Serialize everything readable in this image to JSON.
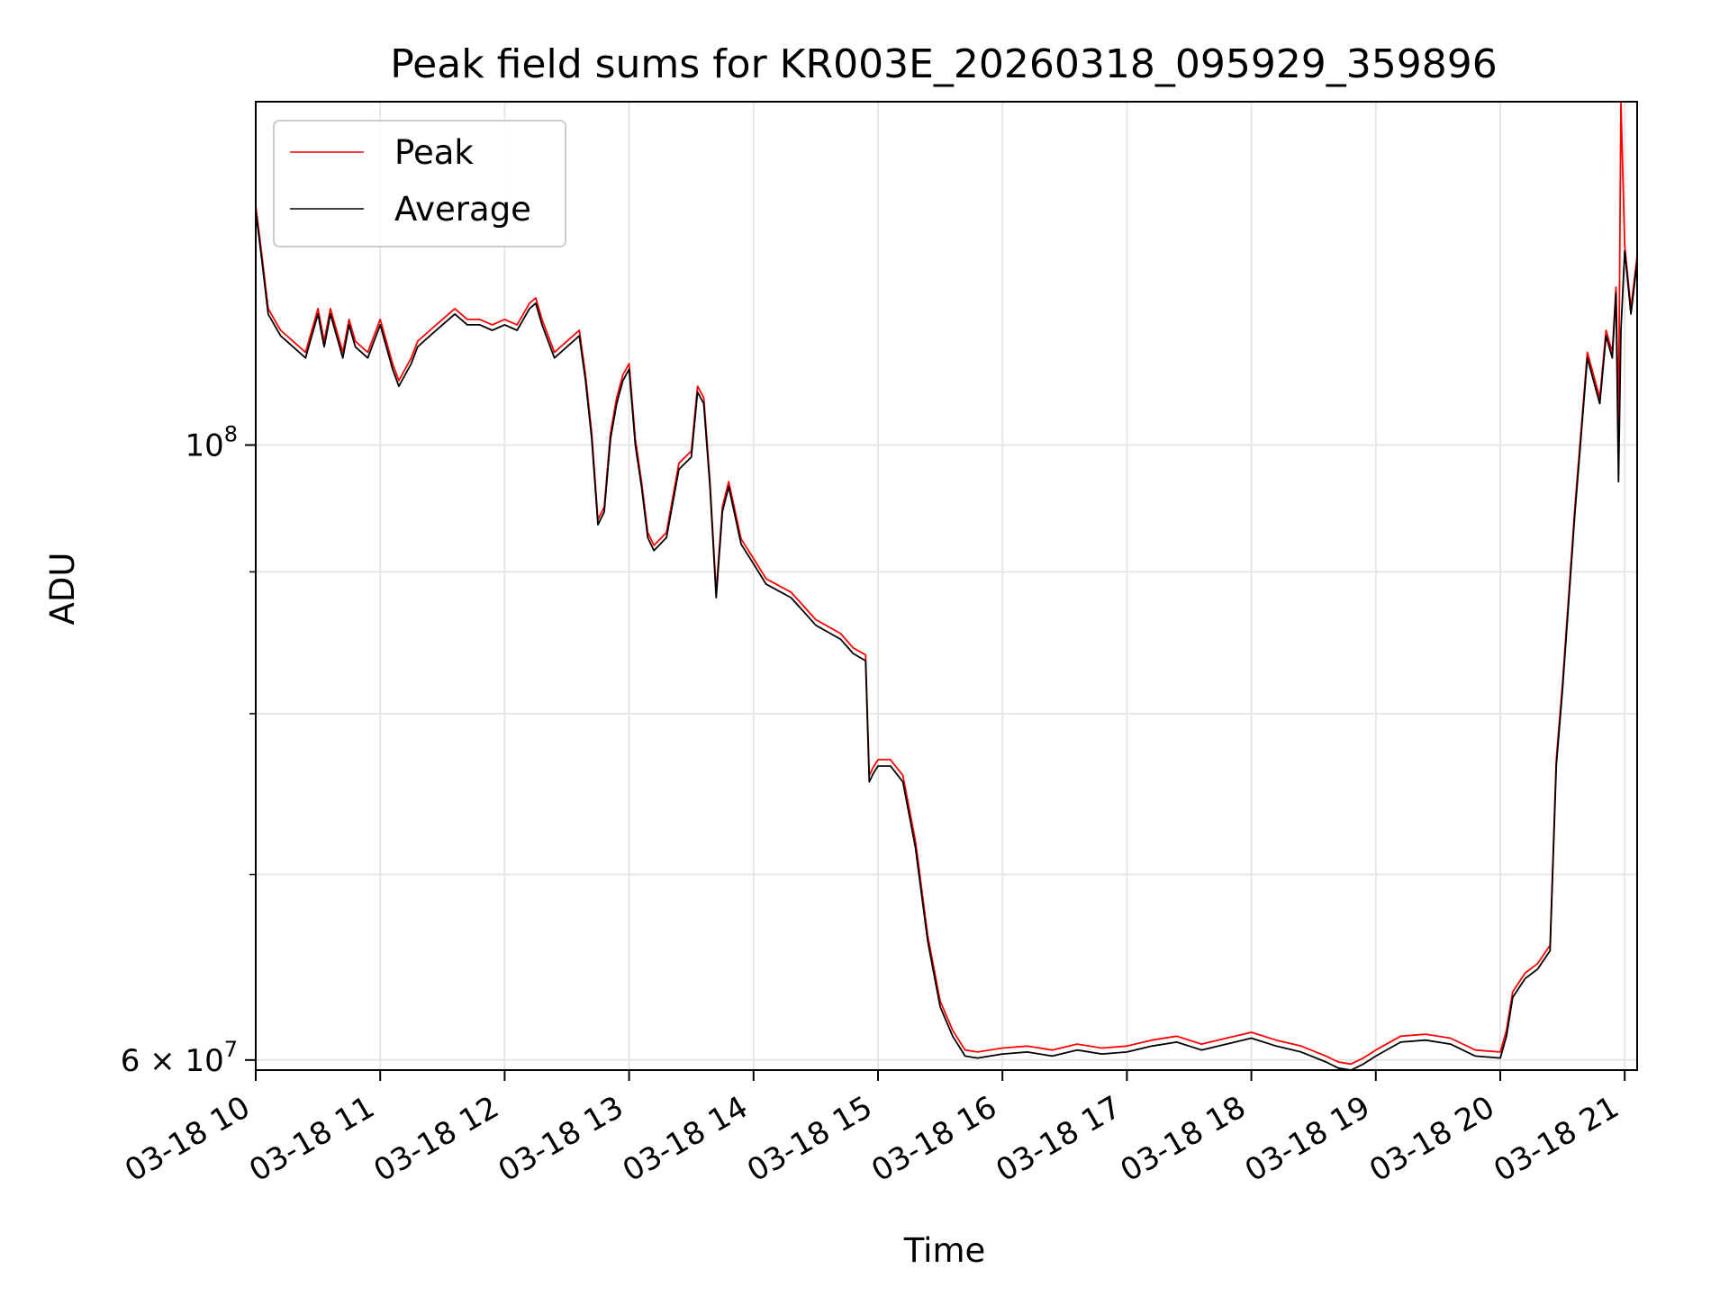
{
  "chart_data": {
    "type": "line",
    "title": "Peak field sums for KR003E_20260318_095929_359896",
    "xlabel": "Time",
    "ylabel": "ADU",
    "x_unit": "hour of 2026-03-18",
    "xlim": [
      10.0,
      21.1
    ],
    "ylim": [
      59500000,
      133000000
    ],
    "yscale": "log",
    "grid": true,
    "legend": "upper left",
    "x_ticks": [
      {
        "value": 10,
        "label": "03-18 10"
      },
      {
        "value": 11,
        "label": "03-18 11"
      },
      {
        "value": 12,
        "label": "03-18 12"
      },
      {
        "value": 13,
        "label": "03-18 13"
      },
      {
        "value": 14,
        "label": "03-18 14"
      },
      {
        "value": 15,
        "label": "03-18 15"
      },
      {
        "value": 16,
        "label": "03-18 16"
      },
      {
        "value": 17,
        "label": "03-18 17"
      },
      {
        "value": 18,
        "label": "03-18 18"
      },
      {
        "value": 19,
        "label": "03-18 19"
      },
      {
        "value": 20,
        "label": "03-18 20"
      },
      {
        "value": 21,
        "label": "03-18 21"
      }
    ],
    "y_major_ticks": [
      {
        "value": 60000000,
        "base": "6 × 10",
        "exp": "7"
      },
      {
        "value": 100000000,
        "base": "10",
        "exp": "8"
      }
    ],
    "y_minor_ticks": [
      70000000,
      80000000,
      90000000
    ],
    "x": [
      10.0,
      10.05,
      10.1,
      10.2,
      10.3,
      10.4,
      10.5,
      10.55,
      10.6,
      10.7,
      10.75,
      10.8,
      10.9,
      11.0,
      11.1,
      11.15,
      11.25,
      11.3,
      11.4,
      11.5,
      11.6,
      11.7,
      11.8,
      11.9,
      12.0,
      12.1,
      12.2,
      12.25,
      12.3,
      12.4,
      12.5,
      12.6,
      12.65,
      12.7,
      12.75,
      12.8,
      12.85,
      12.9,
      12.95,
      13.0,
      13.05,
      13.1,
      13.15,
      13.2,
      13.3,
      13.4,
      13.5,
      13.55,
      13.6,
      13.65,
      13.7,
      13.75,
      13.8,
      13.9,
      14.0,
      14.1,
      14.2,
      14.3,
      14.4,
      14.5,
      14.6,
      14.7,
      14.8,
      14.9,
      14.93,
      14.96,
      15.0,
      15.1,
      15.2,
      15.3,
      15.4,
      15.5,
      15.6,
      15.7,
      15.8,
      16.0,
      16.2,
      16.4,
      16.6,
      16.8,
      17.0,
      17.2,
      17.4,
      17.6,
      17.8,
      18.0,
      18.2,
      18.4,
      18.6,
      18.7,
      18.8,
      18.9,
      19.0,
      19.2,
      19.4,
      19.6,
      19.8,
      20.0,
      20.05,
      20.1,
      20.2,
      20.3,
      20.4,
      20.45,
      20.5,
      20.6,
      20.7,
      20.8,
      20.85,
      20.9,
      20.93,
      20.95,
      20.97,
      21.0,
      21.05,
      21.1
    ],
    "series": [
      {
        "name": "Peak",
        "color": "#ff0000",
        "values": [
          122000000,
          117000000,
          112000000,
          110000000,
          109000000,
          108000000,
          112000000,
          109000000,
          112000000,
          108000000,
          111000000,
          109000000,
          108000000,
          111000000,
          107000000,
          105500000,
          107500000,
          109000000,
          110000000,
          111000000,
          112000000,
          111000000,
          111000000,
          110500000,
          111000000,
          110500000,
          112500000,
          113000000,
          111000000,
          108000000,
          109000000,
          110000000,
          106000000,
          101000000,
          94000000,
          95000000,
          101000000,
          104000000,
          106000000,
          107000000,
          100500000,
          97000000,
          93000000,
          92000000,
          93000000,
          98500000,
          99500000,
          105000000,
          104000000,
          97000000,
          88500000,
          95000000,
          97000000,
          92500000,
          91000000,
          89500000,
          89000000,
          88500000,
          87500000,
          86500000,
          86000000,
          85500000,
          84500000,
          84000000,
          76000000,
          76500000,
          77000000,
          77000000,
          76000000,
          72000000,
          66500000,
          63000000,
          61500000,
          60500000,
          60400000,
          60600000,
          60700000,
          60500000,
          60800000,
          60600000,
          60700000,
          61000000,
          61200000,
          60800000,
          61100000,
          61400000,
          61000000,
          60700000,
          60200000,
          59900000,
          59800000,
          60100000,
          60500000,
          61200000,
          61300000,
          61100000,
          60500000,
          60400000,
          61500000,
          63500000,
          64500000,
          65000000,
          66000000,
          77000000,
          82000000,
          95000000,
          108000000,
          104000000,
          110000000,
          108000000,
          114000000,
          102000000,
          133000000,
          118000000,
          112000000,
          117000000
        ]
      },
      {
        "name": "Average",
        "color": "#000000",
        "values": [
          121500000,
          116500000,
          111500000,
          109500000,
          108500000,
          107500000,
          111500000,
          108500000,
          111500000,
          107500000,
          110500000,
          108500000,
          107500000,
          110500000,
          106500000,
          105000000,
          107000000,
          108500000,
          109500000,
          110500000,
          111500000,
          110500000,
          110500000,
          110000000,
          110500000,
          110000000,
          112000000,
          112500000,
          110500000,
          107500000,
          108500000,
          109500000,
          105500000,
          100500000,
          93600000,
          94600000,
          100500000,
          103500000,
          105500000,
          106500000,
          100000000,
          96600000,
          92600000,
          91600000,
          92600000,
          98000000,
          99000000,
          104500000,
          103500000,
          96600000,
          88100000,
          94600000,
          96600000,
          92100000,
          90600000,
          89100000,
          88600000,
          88100000,
          87100000,
          86100000,
          85600000,
          85100000,
          84100000,
          83600000,
          75600000,
          76100000,
          76600000,
          76600000,
          75600000,
          71600000,
          66200000,
          62700000,
          61200000,
          60200000,
          60100000,
          60300000,
          60400000,
          60200000,
          60500000,
          60300000,
          60400000,
          60700000,
          60900000,
          60500000,
          60800000,
          61100000,
          60700000,
          60400000,
          59900000,
          59600000,
          59500000,
          59800000,
          60200000,
          60900000,
          61000000,
          60800000,
          60200000,
          60100000,
          61200000,
          63200000,
          64200000,
          64700000,
          65700000,
          76600000,
          81600000,
          94500000,
          107500000,
          103500000,
          109500000,
          107500000,
          113500000,
          97000000,
          110000000,
          117500000,
          111500000,
          116500000
        ]
      }
    ]
  }
}
